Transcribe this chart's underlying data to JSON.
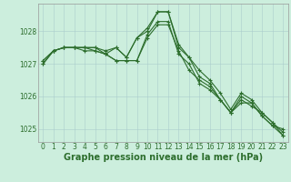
{
  "title": "Graphe pression niveau de la mer (hPa)",
  "xlabel": "Graphe pression niveau de la mer (hPa)",
  "background_color": "#cceedd",
  "grid_color": "#aacccc",
  "line_color": "#2d6e2d",
  "marker_color": "#2d6e2d",
  "xlim": [
    -0.5,
    23.5
  ],
  "ylim": [
    1024.6,
    1028.85
  ],
  "yticks": [
    1025,
    1026,
    1027,
    1028
  ],
  "xticks": [
    0,
    1,
    2,
    3,
    4,
    5,
    6,
    7,
    8,
    9,
    10,
    11,
    12,
    13,
    14,
    15,
    16,
    17,
    18,
    19,
    20,
    21,
    22,
    23
  ],
  "series": [
    [
      1027.1,
      1027.4,
      1027.5,
      1027.5,
      1027.5,
      1027.4,
      1027.3,
      1027.5,
      1027.2,
      1027.8,
      1028.0,
      1028.6,
      1028.6,
      1027.5,
      1027.2,
      1026.8,
      1026.5,
      1026.1,
      1025.6,
      1026.1,
      1025.9,
      1025.5,
      1025.2,
      1024.8
    ],
    [
      1027.1,
      1027.4,
      1027.5,
      1027.5,
      1027.5,
      1027.5,
      1027.4,
      1027.5,
      1027.2,
      1027.8,
      1028.1,
      1028.6,
      1028.6,
      1027.6,
      1027.2,
      1026.6,
      1026.4,
      1025.9,
      1025.5,
      1026.0,
      1025.8,
      1025.4,
      1025.1,
      1024.8
    ],
    [
      1027.0,
      1027.4,
      1027.5,
      1027.5,
      1027.5,
      1027.5,
      1027.3,
      1027.1,
      1027.1,
      1027.1,
      1027.8,
      1028.2,
      1028.2,
      1027.4,
      1026.8,
      1026.5,
      1026.3,
      1025.9,
      1025.5,
      1025.9,
      1025.7,
      1025.5,
      1025.2,
      1024.9
    ],
    [
      1027.0,
      1027.4,
      1027.5,
      1027.5,
      1027.4,
      1027.4,
      1027.3,
      1027.1,
      1027.1,
      1027.1,
      1027.9,
      1028.3,
      1028.3,
      1027.3,
      1027.0,
      1026.4,
      1026.2,
      1025.9,
      1025.5,
      1025.8,
      1025.8,
      1025.4,
      1025.1,
      1025.0
    ]
  ],
  "figsize": [
    3.2,
    2.0
  ],
  "dpi": 100,
  "xlabel_fontsize": 7,
  "tick_fontsize": 5.5,
  "line_width": 0.8,
  "marker_size": 2.5
}
